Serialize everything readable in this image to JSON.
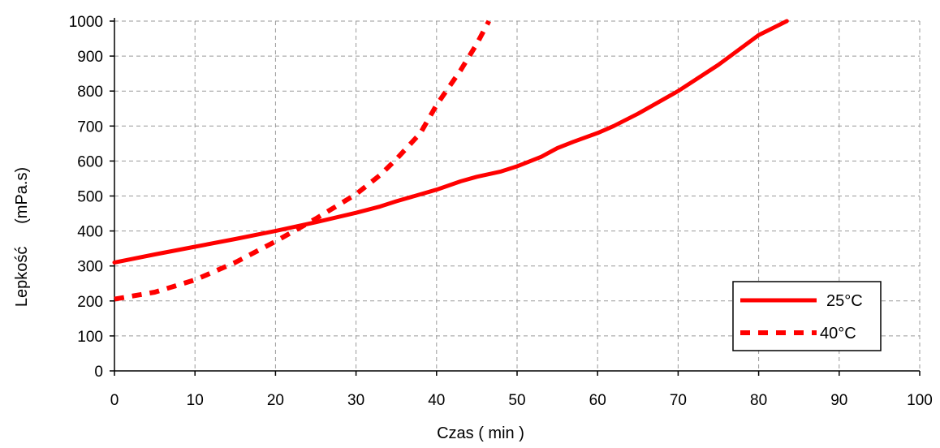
{
  "chart_data": {
    "type": "line",
    "xlabel": "Czas ( min )",
    "ylabel": "Lepkość     (mPa.s)",
    "xlim": [
      0,
      100
    ],
    "ylim": [
      0,
      1000
    ],
    "x_ticks": [
      0,
      10,
      20,
      30,
      40,
      50,
      60,
      70,
      80,
      90,
      100
    ],
    "y_ticks": [
      0,
      100,
      200,
      300,
      400,
      500,
      600,
      700,
      800,
      900,
      1000
    ],
    "grid": true,
    "legend_position": "bottom-right",
    "series": [
      {
        "name": "25°C",
        "style": "solid",
        "color": "#ff0000",
        "x": [
          0,
          5,
          10,
          15,
          20,
          25,
          30,
          33,
          35,
          40,
          43,
          45,
          48,
          50,
          53,
          55,
          57,
          60,
          62,
          65,
          70,
          75,
          80,
          83.5
        ],
        "y": [
          310,
          333,
          355,
          377,
          400,
          425,
          452,
          470,
          485,
          518,
          542,
          555,
          570,
          585,
          612,
          637,
          655,
          680,
          700,
          735,
          800,
          875,
          960,
          1000
        ]
      },
      {
        "name": "40°C",
        "style": "dashed",
        "color": "#ff0000",
        "x": [
          0,
          5,
          10,
          15,
          20,
          25,
          30,
          33,
          35,
          38,
          40,
          43,
          45,
          46.5
        ],
        "y": [
          205,
          225,
          260,
          310,
          370,
          435,
          505,
          560,
          605,
          680,
          760,
          860,
          935,
          1000
        ]
      }
    ]
  }
}
